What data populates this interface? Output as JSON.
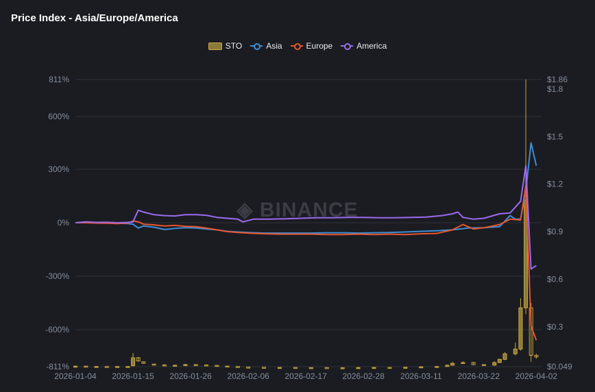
{
  "title": "Price Index - Asia/Europe/America",
  "watermark": "BINANCE",
  "colors": {
    "background": "#1b1c21",
    "grid": "#2f323a",
    "tick": "#848e9c",
    "sto_up": "#c9a83d",
    "asia": "#3d8fd9",
    "europe": "#e8552f",
    "america": "#9a6cf0"
  },
  "legend": [
    {
      "name": "STO",
      "kind": "box",
      "color": "#c9a83d"
    },
    {
      "name": "Asia",
      "kind": "line",
      "color": "#3d8fd9"
    },
    {
      "name": "Europe",
      "kind": "line",
      "color": "#e8552f"
    },
    {
      "name": "America",
      "kind": "line",
      "color": "#9a6cf0"
    }
  ],
  "chart_data": {
    "type": "line",
    "title": "Price Index - Asia/Europe/America",
    "x_ticks": [
      "2026-01-04",
      "2026-01-15",
      "2026-01-26",
      "2026-02-06",
      "2026-02-17",
      "2026-02-28",
      "2026-03-11",
      "2026-03-22",
      "2026-04-02"
    ],
    "x_range": [
      "2026-01-04",
      "2026-04-03"
    ],
    "y_left": {
      "ticks": [
        "811%",
        "600%",
        "300%",
        "0%",
        "-300%",
        "-600%",
        "-811%"
      ],
      "range": [
        -811,
        811
      ]
    },
    "y_right": {
      "ticks": [
        "$1.86",
        "$1.8",
        "$1.5",
        "$1.2",
        "$0.9",
        "$0.6",
        "$0.3",
        "$0.049"
      ],
      "range": [
        0.049,
        1.86
      ]
    },
    "grid": true,
    "legend_position": "top-center",
    "series": [
      {
        "name": "Asia",
        "axis": "left",
        "points": [
          [
            "2026-01-04",
            0
          ],
          [
            "2026-01-06",
            2
          ],
          [
            "2026-01-08",
            0
          ],
          [
            "2026-01-10",
            -2
          ],
          [
            "2026-01-12",
            -3
          ],
          [
            "2026-01-14",
            -5
          ],
          [
            "2026-01-15",
            -8
          ],
          [
            "2026-01-16",
            -30
          ],
          [
            "2026-01-17",
            -18
          ],
          [
            "2026-01-19",
            -25
          ],
          [
            "2026-01-21",
            -38
          ],
          [
            "2026-01-23",
            -32
          ],
          [
            "2026-01-25",
            -28
          ],
          [
            "2026-01-27",
            -30
          ],
          [
            "2026-01-29",
            -35
          ],
          [
            "2026-01-31",
            -40
          ],
          [
            "2026-02-02",
            -48
          ],
          [
            "2026-02-04",
            -52
          ],
          [
            "2026-02-06",
            -55
          ],
          [
            "2026-02-09",
            -58
          ],
          [
            "2026-02-12",
            -58
          ],
          [
            "2026-02-15",
            -58
          ],
          [
            "2026-02-18",
            -58
          ],
          [
            "2026-02-21",
            -56
          ],
          [
            "2026-02-24",
            -56
          ],
          [
            "2026-02-27",
            -58
          ],
          [
            "2026-03-02",
            -56
          ],
          [
            "2026-03-05",
            -55
          ],
          [
            "2026-03-08",
            -52
          ],
          [
            "2026-03-11",
            -48
          ],
          [
            "2026-03-14",
            -45
          ],
          [
            "2026-03-17",
            -40
          ],
          [
            "2026-03-20",
            -30
          ],
          [
            "2026-03-23",
            -28
          ],
          [
            "2026-03-26",
            -22
          ],
          [
            "2026-03-28",
            40
          ],
          [
            "2026-03-29",
            20
          ],
          [
            "2026-03-30",
            20
          ],
          [
            "2026-03-31",
            180
          ],
          [
            "2026-04-01",
            450
          ],
          [
            "2026-04-02",
            320
          ]
        ]
      },
      {
        "name": "Europe",
        "axis": "left",
        "points": [
          [
            "2026-01-04",
            0
          ],
          [
            "2026-01-06",
            0
          ],
          [
            "2026-01-08",
            -2
          ],
          [
            "2026-01-10",
            -3
          ],
          [
            "2026-01-12",
            -5
          ],
          [
            "2026-01-14",
            -2
          ],
          [
            "2026-01-15",
            10
          ],
          [
            "2026-01-16",
            5
          ],
          [
            "2026-01-17",
            -8
          ],
          [
            "2026-01-19",
            -12
          ],
          [
            "2026-01-21",
            -18
          ],
          [
            "2026-01-23",
            -15
          ],
          [
            "2026-01-25",
            -20
          ],
          [
            "2026-01-27",
            -22
          ],
          [
            "2026-01-29",
            -30
          ],
          [
            "2026-01-31",
            -40
          ],
          [
            "2026-02-02",
            -50
          ],
          [
            "2026-02-04",
            -55
          ],
          [
            "2026-02-06",
            -58
          ],
          [
            "2026-02-09",
            -62
          ],
          [
            "2026-02-12",
            -64
          ],
          [
            "2026-02-15",
            -64
          ],
          [
            "2026-02-18",
            -64
          ],
          [
            "2026-02-21",
            -66
          ],
          [
            "2026-02-24",
            -66
          ],
          [
            "2026-02-27",
            -64
          ],
          [
            "2026-03-02",
            -66
          ],
          [
            "2026-03-05",
            -64
          ],
          [
            "2026-03-08",
            -66
          ],
          [
            "2026-03-11",
            -62
          ],
          [
            "2026-03-14",
            -60
          ],
          [
            "2026-03-17",
            -40
          ],
          [
            "2026-03-19",
            -10
          ],
          [
            "2026-03-21",
            -35
          ],
          [
            "2026-03-23",
            -28
          ],
          [
            "2026-03-26",
            -10
          ],
          [
            "2026-03-28",
            20
          ],
          [
            "2026-03-30",
            15
          ],
          [
            "2026-03-31",
            210
          ],
          [
            "2026-04-01",
            -580
          ],
          [
            "2026-04-02",
            -660
          ]
        ]
      },
      {
        "name": "America",
        "axis": "left",
        "points": [
          [
            "2026-01-04",
            0
          ],
          [
            "2026-01-06",
            5
          ],
          [
            "2026-01-08",
            2
          ],
          [
            "2026-01-10",
            3
          ],
          [
            "2026-01-12",
            0
          ],
          [
            "2026-01-14",
            2
          ],
          [
            "2026-01-15",
            5
          ],
          [
            "2026-01-16",
            70
          ],
          [
            "2026-01-17",
            60
          ],
          [
            "2026-01-19",
            45
          ],
          [
            "2026-01-21",
            40
          ],
          [
            "2026-01-23",
            38
          ],
          [
            "2026-01-25",
            45
          ],
          [
            "2026-01-27",
            45
          ],
          [
            "2026-01-29",
            42
          ],
          [
            "2026-01-31",
            30
          ],
          [
            "2026-02-02",
            25
          ],
          [
            "2026-02-04",
            20
          ],
          [
            "2026-02-05",
            5
          ],
          [
            "2026-02-07",
            20
          ],
          [
            "2026-02-10",
            20
          ],
          [
            "2026-02-13",
            22
          ],
          [
            "2026-02-16",
            25
          ],
          [
            "2026-02-19",
            28
          ],
          [
            "2026-02-22",
            28
          ],
          [
            "2026-02-25",
            30
          ],
          [
            "2026-02-28",
            30
          ],
          [
            "2026-03-03",
            28
          ],
          [
            "2026-03-06",
            28
          ],
          [
            "2026-03-09",
            30
          ],
          [
            "2026-03-12",
            32
          ],
          [
            "2026-03-15",
            40
          ],
          [
            "2026-03-17",
            50
          ],
          [
            "2026-03-18",
            60
          ],
          [
            "2026-03-19",
            30
          ],
          [
            "2026-03-21",
            20
          ],
          [
            "2026-03-23",
            25
          ],
          [
            "2026-03-26",
            50
          ],
          [
            "2026-03-28",
            55
          ],
          [
            "2026-03-30",
            120
          ],
          [
            "2026-03-31",
            320
          ],
          [
            "2026-04-01",
            -260
          ],
          [
            "2026-04-02",
            -240
          ]
        ]
      }
    ],
    "sto_candles": {
      "name": "STO",
      "axis": "right",
      "fields": [
        "date",
        "open",
        "close",
        "high",
        "low"
      ],
      "data": [
        [
          "2026-01-04",
          0.05,
          0.052,
          0.056,
          0.048
        ],
        [
          "2026-01-06",
          0.052,
          0.051,
          0.055,
          0.049
        ],
        [
          "2026-01-08",
          0.05,
          0.05,
          0.053,
          0.048
        ],
        [
          "2026-01-10",
          0.05,
          0.049,
          0.052,
          0.047
        ],
        [
          "2026-01-12",
          0.049,
          0.05,
          0.052,
          0.047
        ],
        [
          "2026-01-14",
          0.049,
          0.05,
          0.052,
          0.048
        ],
        [
          "2026-01-15",
          0.055,
          0.105,
          0.135,
          0.05
        ],
        [
          "2026-01-16",
          0.105,
          0.085,
          0.11,
          0.08
        ],
        [
          "2026-01-17",
          0.08,
          0.07,
          0.082,
          0.068
        ],
        [
          "2026-01-19",
          0.065,
          0.062,
          0.068,
          0.06
        ],
        [
          "2026-01-21",
          0.06,
          0.055,
          0.064,
          0.053
        ],
        [
          "2026-01-23",
          0.055,
          0.058,
          0.061,
          0.053
        ],
        [
          "2026-01-25",
          0.058,
          0.062,
          0.066,
          0.056
        ],
        [
          "2026-01-27",
          0.062,
          0.06,
          0.065,
          0.058
        ],
        [
          "2026-01-29",
          0.06,
          0.058,
          0.062,
          0.055
        ],
        [
          "2026-01-31",
          0.057,
          0.053,
          0.059,
          0.05
        ],
        [
          "2026-02-02",
          0.053,
          0.05,
          0.055,
          0.048
        ],
        [
          "2026-02-04",
          0.05,
          0.048,
          0.052,
          0.045
        ],
        [
          "2026-02-06",
          0.046,
          0.045,
          0.048,
          0.043
        ],
        [
          "2026-02-09",
          0.045,
          0.044,
          0.047,
          0.042
        ],
        [
          "2026-02-12",
          0.044,
          0.044,
          0.046,
          0.042
        ],
        [
          "2026-02-15",
          0.044,
          0.043,
          0.046,
          0.041
        ],
        [
          "2026-02-18",
          0.043,
          0.043,
          0.045,
          0.041
        ],
        [
          "2026-02-21",
          0.043,
          0.042,
          0.045,
          0.04
        ],
        [
          "2026-02-24",
          0.042,
          0.042,
          0.045,
          0.04
        ],
        [
          "2026-02-27",
          0.042,
          0.043,
          0.046,
          0.04
        ],
        [
          "2026-03-02",
          0.043,
          0.044,
          0.047,
          0.041
        ],
        [
          "2026-03-05",
          0.044,
          0.043,
          0.047,
          0.041
        ],
        [
          "2026-03-08",
          0.043,
          0.045,
          0.048,
          0.041
        ],
        [
          "2026-03-11",
          0.045,
          0.048,
          0.051,
          0.043
        ],
        [
          "2026-03-14",
          0.048,
          0.05,
          0.054,
          0.046
        ],
        [
          "2026-03-16",
          0.05,
          0.058,
          0.062,
          0.048
        ],
        [
          "2026-03-17",
          0.058,
          0.07,
          0.078,
          0.056
        ],
        [
          "2026-03-19",
          0.07,
          0.075,
          0.082,
          0.066
        ],
        [
          "2026-03-21",
          0.075,
          0.062,
          0.078,
          0.058
        ],
        [
          "2026-03-23",
          0.062,
          0.058,
          0.065,
          0.055
        ],
        [
          "2026-03-25",
          0.058,
          0.075,
          0.082,
          0.056
        ],
        [
          "2026-03-26",
          0.075,
          0.095,
          0.1,
          0.072
        ],
        [
          "2026-03-27",
          0.095,
          0.13,
          0.14,
          0.09
        ],
        [
          "2026-03-29",
          0.13,
          0.16,
          0.2,
          0.12
        ],
        [
          "2026-03-30",
          0.16,
          0.42,
          0.48,
          0.15
        ],
        [
          "2026-03-31",
          0.42,
          1.1,
          1.86,
          0.38
        ],
        [
          "2026-04-01",
          0.42,
          0.12,
          0.45,
          0.08
        ],
        [
          "2026-04-02",
          0.12,
          0.11,
          0.13,
          0.1
        ]
      ]
    }
  }
}
